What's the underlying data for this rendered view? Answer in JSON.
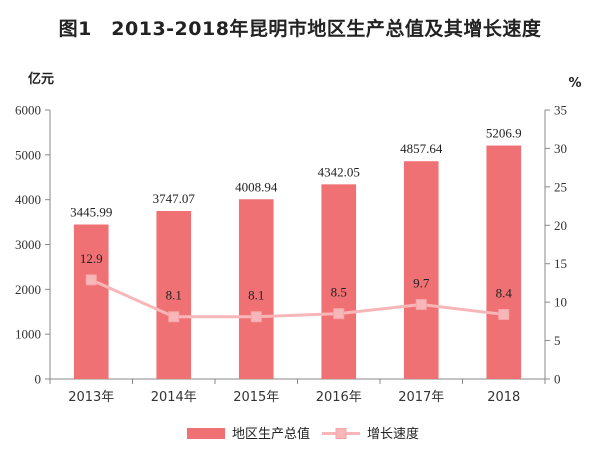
{
  "title": "图1　2013-2018年昆明市地区生产总值及其增长速度",
  "chart_data": {
    "type": "bar",
    "categories": [
      "2013年",
      "2014年",
      "2015年",
      "2016年",
      "2017年",
      "2018"
    ],
    "series": [
      {
        "name": "地区生产总值",
        "type": "bar",
        "axis": "left",
        "color": "#f07173",
        "values": [
          3445.99,
          3747.07,
          4008.94,
          4342.05,
          4857.64,
          5206.9
        ],
        "labels": [
          "3445.99",
          "3747.07",
          "4008.94",
          "4342.05",
          "4857.64",
          "5206.9"
        ]
      },
      {
        "name": "增长速度",
        "type": "line",
        "axis": "right",
        "color": "#f7b7b9",
        "values": [
          12.9,
          8.1,
          8.1,
          8.5,
          9.7,
          8.4
        ],
        "labels": [
          "12.9",
          "8.1",
          "8.1",
          "8.5",
          "9.7",
          "8.4"
        ]
      }
    ],
    "y_left": {
      "unit": "亿元",
      "ylim": [
        0,
        6000
      ],
      "ticks": [
        "0",
        "1000",
        "2000",
        "3000",
        "4000",
        "5000",
        "6000"
      ]
    },
    "y_right": {
      "unit": "%",
      "ylim": [
        0,
        35
      ],
      "ticks": [
        "0",
        "5",
        "10",
        "15",
        "20",
        "25",
        "30",
        "35"
      ]
    },
    "grid": false,
    "legend": "bottom"
  }
}
